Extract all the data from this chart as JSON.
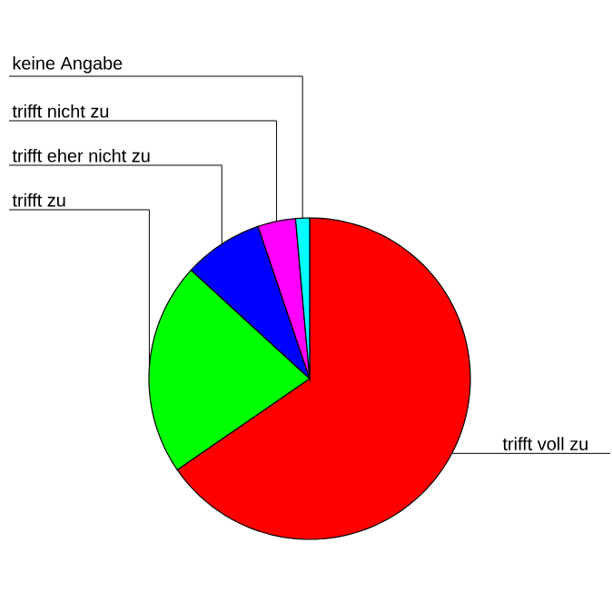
{
  "chart_data": {
    "type": "pie",
    "categories": [
      "trifft voll zu",
      "trifft zu",
      "trifft eher nicht zu",
      "trifft nicht zu",
      "keine Angabe"
    ],
    "values": [
      65.4,
      21.4,
      8.0,
      3.8,
      1.4
    ],
    "colors": [
      "#ff0000",
      "#00ff00",
      "#0000ff",
      "#ff00ff",
      "#00ffff"
    ]
  }
}
